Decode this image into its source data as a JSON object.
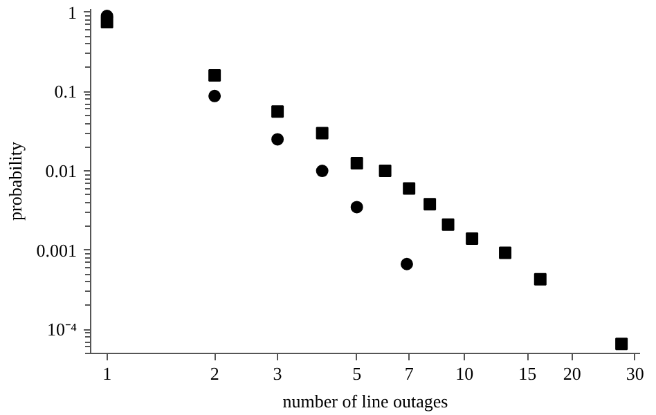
{
  "chart_data": {
    "type": "scatter",
    "xlabel": "number of line outages",
    "ylabel": "probability",
    "log": "xy",
    "grid": false,
    "xlim": [
      0.9,
      31
    ],
    "ylim": [
      5e-05,
      1.1
    ],
    "xticks": [
      1,
      2,
      3,
      5,
      7,
      10,
      15,
      20,
      30
    ],
    "yticks": [
      1,
      0.1,
      0.01,
      0.001,
      {
        "value": 0.0001,
        "label": "10⁻⁴"
      }
    ],
    "series": [
      {
        "color": "#000000",
        "marker": "circle",
        "x": [
          1,
          2,
          3,
          4,
          5,
          6.9
        ],
        "values": [
          0.9,
          0.088,
          0.025,
          0.01,
          0.0035,
          0.00067
        ]
      },
      {
        "color": "#000000",
        "marker": "square",
        "x": [
          1,
          2,
          3,
          4,
          5,
          6,
          7,
          8,
          9,
          10.5,
          13,
          16.3,
          27.5
        ],
        "values": [
          0.75,
          0.16,
          0.056,
          0.03,
          0.0125,
          0.01,
          0.006,
          0.0038,
          0.0021,
          0.0014,
          0.00093,
          0.00043,
          6.6e-05
        ]
      }
    ]
  }
}
